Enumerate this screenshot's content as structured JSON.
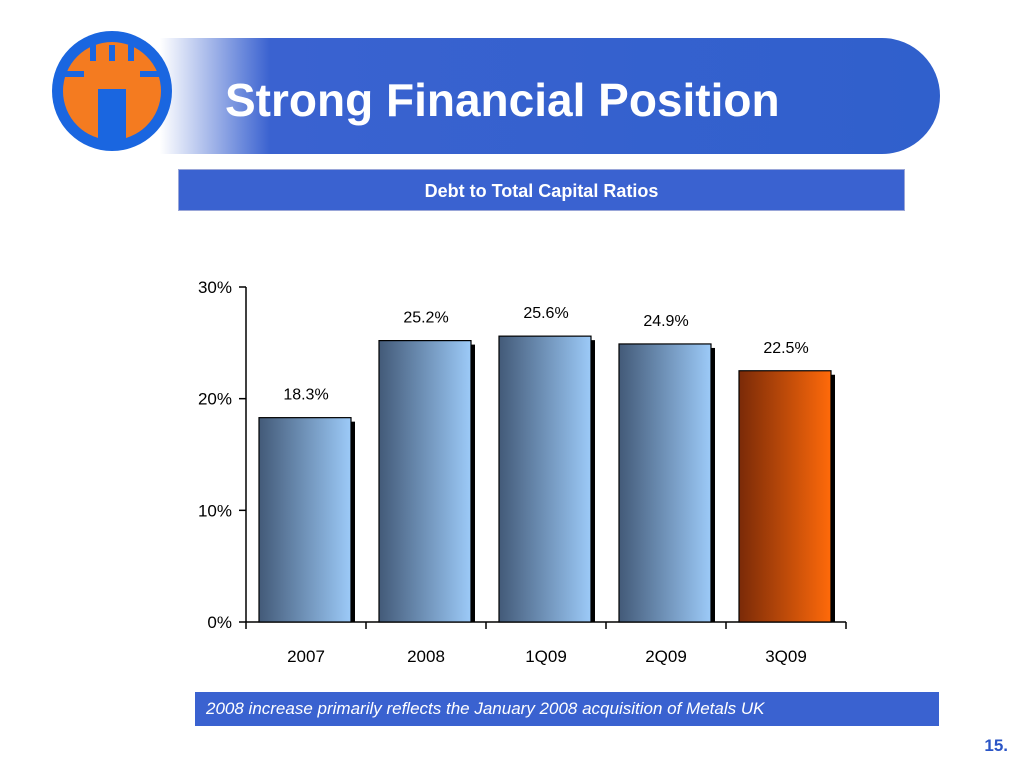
{
  "header": {
    "title": "Strong Financial Position"
  },
  "subtitle": "Debt to Total Capital Ratios",
  "chart_data": {
    "type": "bar",
    "title": "",
    "xlabel": "",
    "ylabel": "",
    "categories": [
      "2007",
      "2008",
      "1Q09",
      "2Q09",
      "3Q09"
    ],
    "values": [
      18.3,
      25.2,
      25.6,
      24.9,
      22.5
    ],
    "data_labels": [
      "18.3%",
      "25.2%",
      "25.6%",
      "24.9%",
      "22.5%"
    ],
    "ylim": [
      0,
      30
    ],
    "yticks": [
      0,
      10,
      20,
      30
    ],
    "ytick_labels": [
      "0%",
      "10%",
      "20%",
      "30%"
    ],
    "grid": false,
    "highlight_index": 4,
    "colors": {
      "bar_dark": "#435a78",
      "bar_light": "#9ccaf8",
      "highlight_dark": "#7a2a08",
      "highlight_light": "#ff6a0a"
    }
  },
  "footnote": "2008 increase primarily reflects the January 2008 acquisition of Metals UK",
  "page_number": "15.",
  "logo": {
    "icon": "castle-tower-icon",
    "colors": {
      "ring": "#1a66e0",
      "tower": "#f47b20"
    }
  }
}
